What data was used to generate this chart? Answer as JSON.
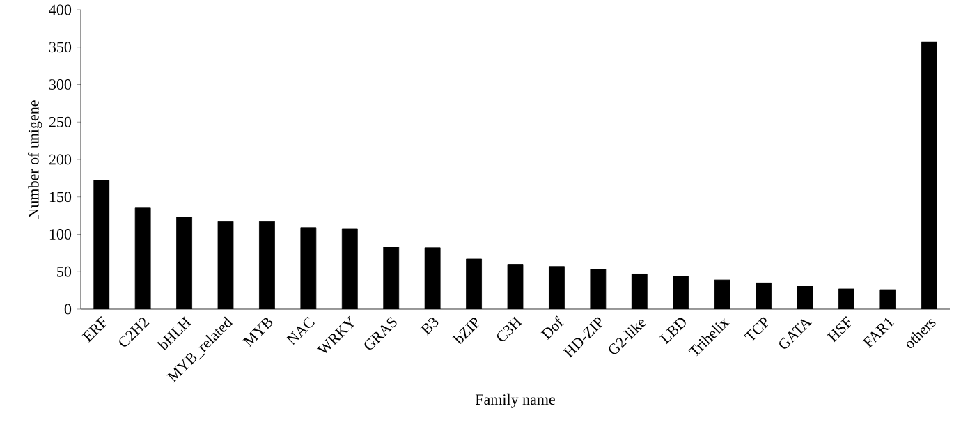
{
  "chart_data": {
    "type": "bar",
    "xlabel": "Family name",
    "ylabel": "Number of unigene",
    "categories": [
      "ERF",
      "C2H2",
      "bHLH",
      "MYB_related",
      "MYB",
      "NAC",
      "WRKY",
      "GRAS",
      "B3",
      "bZIP",
      "C3H",
      "Dof",
      "HD-ZIP",
      "G2-like",
      "LBD",
      "Trihelix",
      "TCP",
      "GATA",
      "HSF",
      "FAR1",
      "others"
    ],
    "values": [
      172,
      136,
      123,
      117,
      117,
      109,
      107,
      83,
      82,
      67,
      60,
      57,
      53,
      47,
      44,
      39,
      35,
      31,
      27,
      26,
      357
    ],
    "color": "#000000",
    "ylim": [
      0,
      400
    ],
    "yticks": [
      0,
      50,
      100,
      150,
      200,
      250,
      300,
      350,
      400
    ],
    "grid": false
  }
}
